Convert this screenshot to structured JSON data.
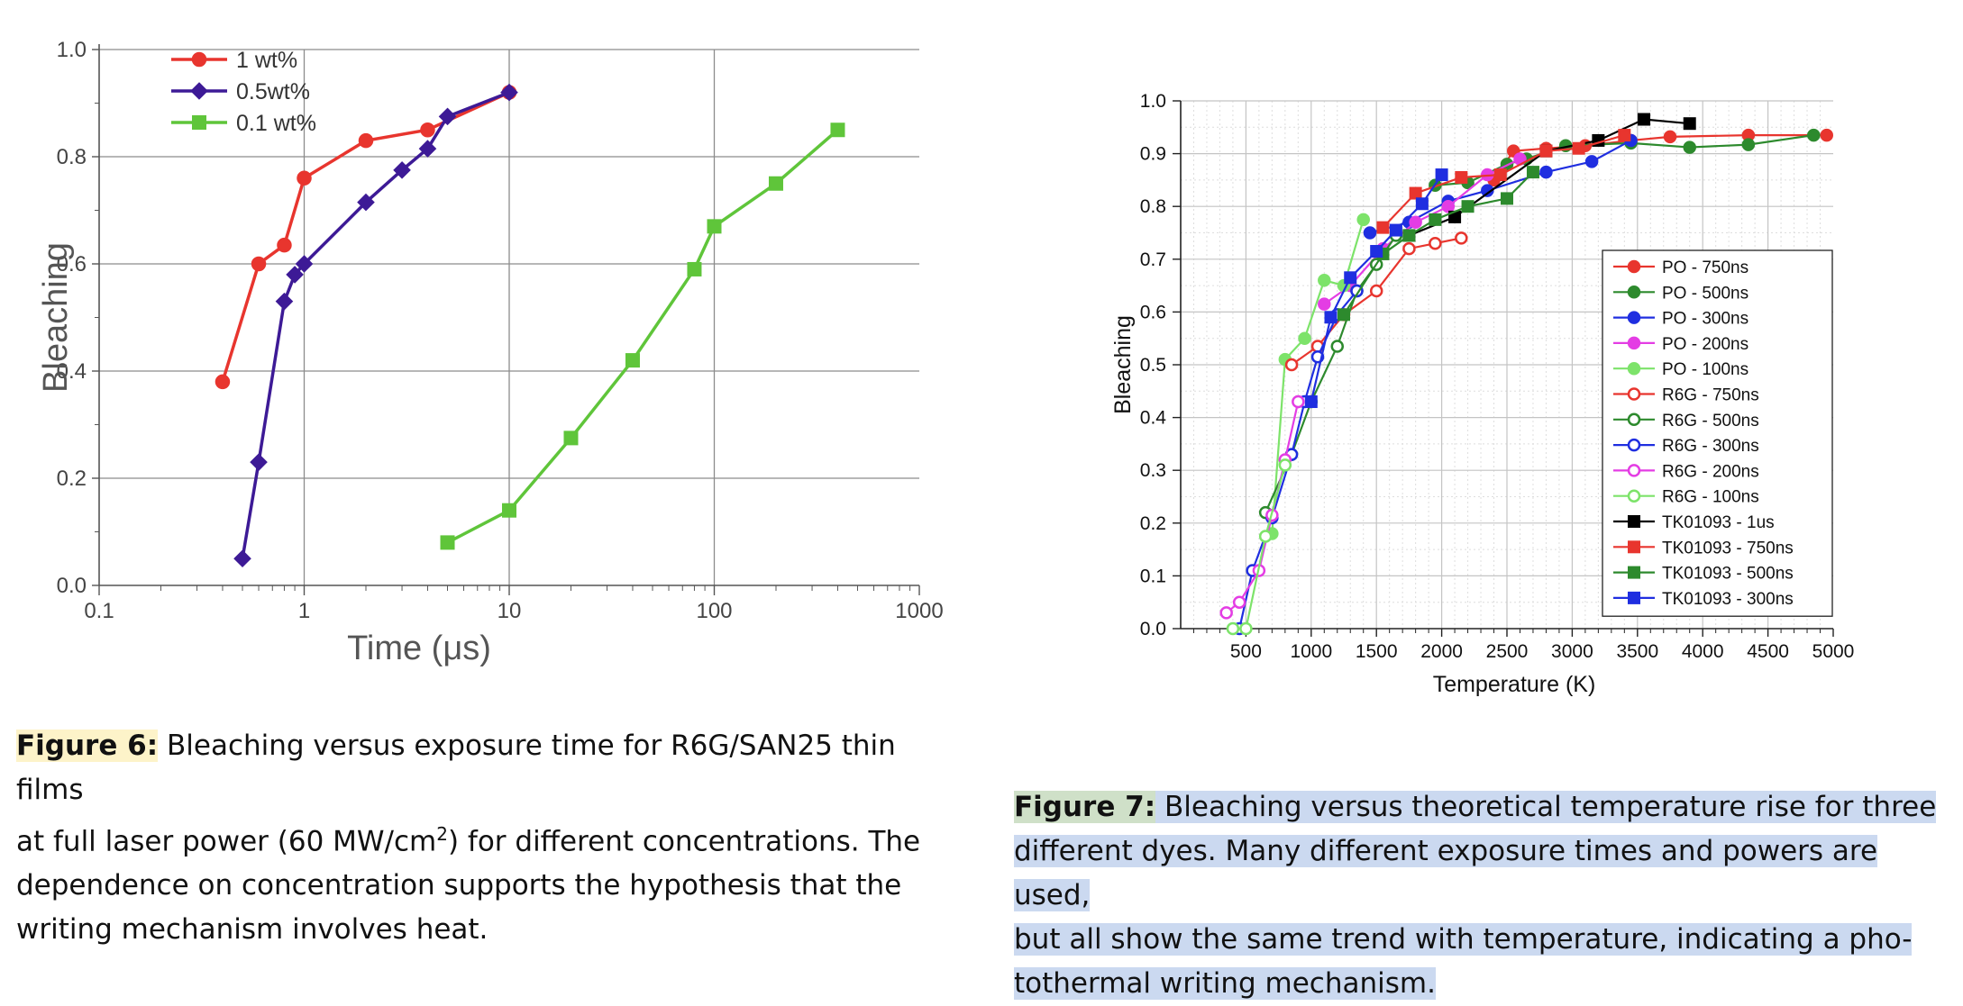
{
  "figure6": {
    "caption_label": "Figure 6:",
    "caption_line1": " Bleaching versus exposure time for R6G/SAN25 thin films",
    "caption_line2_pre": "at full laser power (60 MW/cm",
    "caption_sup": "2",
    "caption_line2_post": ") for different concentrations. The",
    "caption_line3": "dependence on concentration supports the hypothesis that the",
    "caption_line4": "writing mechanism involves heat."
  },
  "figure7": {
    "caption_label": "Figure 7:",
    "caption_line1": " Bleaching versus theoretical temperature rise for three",
    "caption_line2": "different dyes. Many different exposure times and powers are used,",
    "caption_line3": "but all show the same trend with temperature, indicating a pho-",
    "caption_line4": "tothermal writing mechanism."
  },
  "chart_data": [
    {
      "type": "line",
      "xscale": "log",
      "xlabel": "Time (μs)",
      "ylabel": "Bleaching",
      "xlim": [
        0.1,
        1000
      ],
      "ylim": [
        0.0,
        1.0
      ],
      "xticks": [
        0.1,
        1,
        10,
        100,
        1000
      ],
      "xtick_labels": [
        "0.1",
        "1",
        "10",
        "100",
        "1000"
      ],
      "yticks": [
        0.0,
        0.2,
        0.4,
        0.6,
        0.8,
        1.0
      ],
      "ytick_labels": [
        "0.0",
        "0.2",
        "0.4",
        "0.6",
        "0.8",
        "1.0"
      ],
      "grid": true,
      "legend_position": "top-left",
      "series": [
        {
          "name": "1 wt%",
          "color": "#e8352e",
          "marker": "circle",
          "x": [
            0.4,
            0.6,
            0.8,
            1.0,
            2.0,
            4.0,
            10.0
          ],
          "y": [
            0.38,
            0.6,
            0.635,
            0.76,
            0.83,
            0.85,
            0.92
          ]
        },
        {
          "name": "0.5wt%",
          "color": "#3d1a96",
          "marker": "diamond",
          "x": [
            0.5,
            0.6,
            0.8,
            0.9,
            1.0,
            2.0,
            3.0,
            4.0,
            5.0,
            10.0
          ],
          "y": [
            0.05,
            0.23,
            0.53,
            0.58,
            0.6,
            0.715,
            0.775,
            0.815,
            0.875,
            0.92
          ]
        },
        {
          "name": "0.1 wt%",
          "color": "#5fc53a",
          "marker": "square",
          "x": [
            5,
            10,
            20,
            40,
            80,
            100,
            200,
            400
          ],
          "y": [
            0.08,
            0.14,
            0.275,
            0.42,
            0.59,
            0.67,
            0.75,
            0.85
          ]
        }
      ]
    },
    {
      "type": "line",
      "xlabel": "Temperature (K)",
      "ylabel": "Bleaching",
      "xlim": [
        0,
        5000
      ],
      "ylim": [
        0.0,
        1.0
      ],
      "xticks": [
        500,
        1000,
        1500,
        2000,
        2500,
        3000,
        3500,
        4000,
        4500,
        5000
      ],
      "xtick_labels": [
        "500",
        "1000",
        "1500",
        "2000",
        "2500",
        "3000",
        "3500",
        "4000",
        "4500",
        "5000"
      ],
      "yticks": [
        0.0,
        0.1,
        0.2,
        0.3,
        0.4,
        0.5,
        0.6,
        0.7,
        0.8,
        0.9,
        1.0
      ],
      "ytick_labels": [
        "0.0",
        "0.1",
        "0.2",
        "0.3",
        "0.4",
        "0.5",
        "0.6",
        "0.7",
        "0.8",
        "0.9",
        "1.0"
      ],
      "grid": true,
      "legend_position": "right",
      "series": [
        {
          "name": "PO - 750ns",
          "color": "#e8352e",
          "marker": "circle",
          "fill": true,
          "x": [
            2400,
            2550,
            2800,
            3100,
            3450,
            3750,
            4350,
            4950
          ],
          "y": [
            0.85,
            0.905,
            0.91,
            0.915,
            0.925,
            0.932,
            0.935,
            0.935
          ]
        },
        {
          "name": "PO - 500ns",
          "color": "#2d8a2d",
          "marker": "circle",
          "fill": true,
          "x": [
            1950,
            2200,
            2500,
            2650,
            2950,
            3450,
            3900,
            4350,
            4850
          ],
          "y": [
            0.84,
            0.845,
            0.88,
            0.89,
            0.915,
            0.92,
            0.912,
            0.917,
            0.935
          ]
        },
        {
          "name": "PO - 300ns",
          "color": "#1f2ee0",
          "marker": "circle",
          "fill": true,
          "x": [
            1450,
            1750,
            2050,
            2350,
            2800,
            3150,
            3450
          ],
          "y": [
            0.75,
            0.77,
            0.81,
            0.83,
            0.865,
            0.885,
            0.925
          ]
        },
        {
          "name": "PO - 200ns",
          "color": "#e43de4",
          "marker": "circle",
          "fill": true,
          "x": [
            1100,
            1300,
            1550,
            1800,
            2050,
            2350,
            2600
          ],
          "y": [
            0.615,
            0.65,
            0.72,
            0.77,
            0.8,
            0.86,
            0.89
          ]
        },
        {
          "name": "PO - 100ns",
          "color": "#7de36a",
          "marker": "circle",
          "fill": true,
          "x": [
            700,
            800,
            950,
            1100,
            1250,
            1400
          ],
          "y": [
            0.18,
            0.51,
            0.55,
            0.66,
            0.65,
            0.775
          ]
        },
        {
          "name": "R6G - 750ns",
          "color": "#e8352e",
          "marker": "circle",
          "fill": false,
          "x": [
            850,
            1050,
            1250,
            1500,
            1750,
            1950,
            2150
          ],
          "y": [
            0.5,
            0.535,
            0.595,
            0.64,
            0.72,
            0.73,
            0.74
          ]
        },
        {
          "name": "R6G - 500ns",
          "color": "#2d8a2d",
          "marker": "circle",
          "fill": false,
          "x": [
            650,
            850,
            1000,
            1200,
            1350,
            1500,
            1650
          ],
          "y": [
            0.22,
            0.33,
            0.43,
            0.535,
            0.64,
            0.69,
            0.745
          ]
        },
        {
          "name": "R6G - 300ns",
          "color": "#1f2ee0",
          "marker": "circle",
          "fill": false,
          "x": [
            450,
            550,
            700,
            850,
            950,
            1050,
            1200,
            1350
          ],
          "y": [
            0.0,
            0.11,
            0.21,
            0.33,
            0.43,
            0.515,
            0.595,
            0.64
          ]
        },
        {
          "name": "R6G - 200ns",
          "color": "#e43de4",
          "marker": "circle",
          "fill": false,
          "x": [
            350,
            450,
            600,
            700,
            800,
            900
          ],
          "y": [
            0.03,
            0.05,
            0.11,
            0.215,
            0.32,
            0.43
          ]
        },
        {
          "name": "R6G - 100ns",
          "color": "#7de36a",
          "marker": "circle",
          "fill": false,
          "x": [
            400,
            500,
            650,
            800
          ],
          "y": [
            0.0,
            0.0,
            0.175,
            0.31
          ]
        },
        {
          "name": "TK01093 - 1us",
          "color": "#000000",
          "marker": "square",
          "fill": true,
          "x": [
            1750,
            2100,
            2800,
            3200,
            3550,
            3900
          ],
          "y": [
            0.745,
            0.78,
            0.905,
            0.925,
            0.965,
            0.957
          ]
        },
        {
          "name": "TK01093 - 750ns",
          "color": "#e8352e",
          "marker": "square",
          "fill": true,
          "x": [
            1550,
            1800,
            2150,
            2450,
            2800,
            3050,
            3400
          ],
          "y": [
            0.76,
            0.825,
            0.855,
            0.86,
            0.905,
            0.91,
            0.935
          ]
        },
        {
          "name": "TK01093 - 500ns",
          "color": "#2d8a2d",
          "marker": "square",
          "fill": true,
          "x": [
            1250,
            1550,
            1750,
            1950,
            2200,
            2500,
            2700
          ],
          "y": [
            0.595,
            0.71,
            0.745,
            0.775,
            0.8,
            0.815,
            0.865
          ]
        },
        {
          "name": "TK01093 - 300ns",
          "color": "#1f2ee0",
          "marker": "square",
          "fill": true,
          "x": [
            1000,
            1150,
            1300,
            1500,
            1650,
            1850,
            2000
          ],
          "y": [
            0.43,
            0.59,
            0.665,
            0.715,
            0.755,
            0.805,
            0.86
          ]
        }
      ]
    }
  ]
}
